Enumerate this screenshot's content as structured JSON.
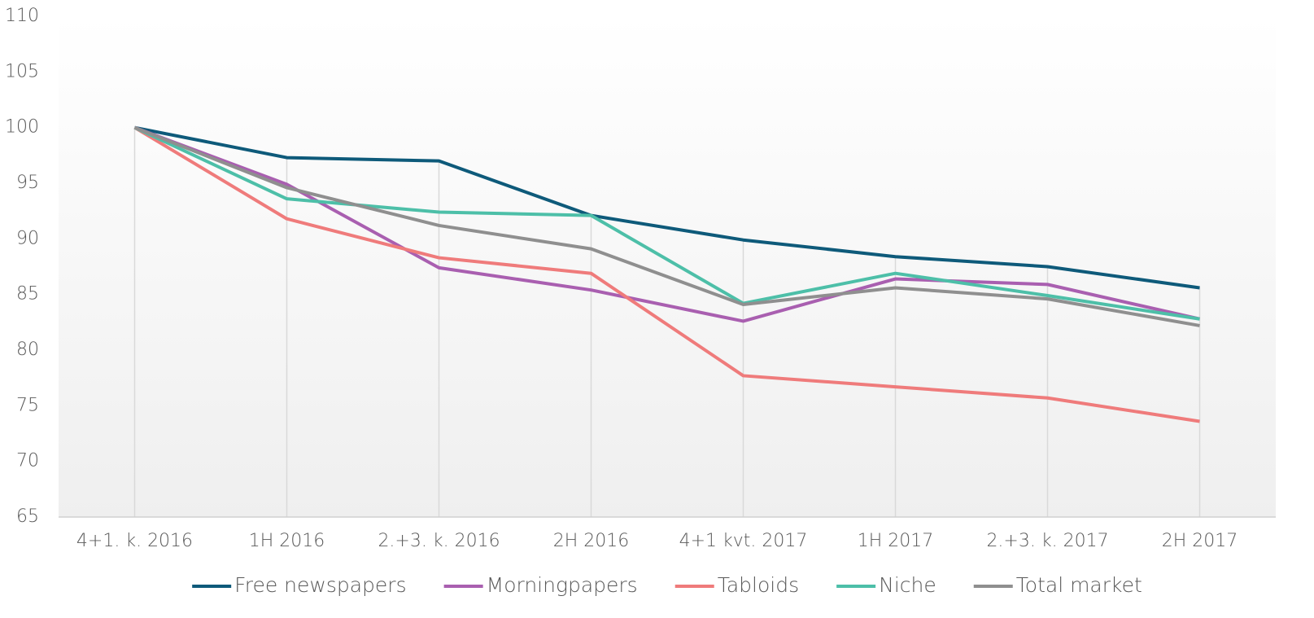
{
  "chart_data": {
    "type": "line",
    "categories": [
      "4+1. k. 2016",
      "1H 2016",
      "2.+3. k. 2016",
      "2H 2016",
      "4+1 kvt. 2017",
      "1H 2017",
      "2.+3. k. 2017",
      "2H 2017"
    ],
    "series": [
      {
        "name": "Free newspapers",
        "color": "#0e5a7a",
        "values": [
          100,
          97.3,
          97.0,
          92.1,
          89.9,
          88.4,
          87.5,
          85.6
        ]
      },
      {
        "name": "Morningpapers",
        "color": "#a95fb0",
        "values": [
          100,
          94.9,
          87.4,
          85.4,
          82.6,
          86.4,
          85.9,
          82.8
        ]
      },
      {
        "name": "Tabloids",
        "color": "#ef7b7b",
        "values": [
          100,
          91.8,
          88.3,
          86.9,
          77.7,
          76.7,
          75.7,
          73.6
        ]
      },
      {
        "name": "Niche",
        "color": "#4dbfa8",
        "values": [
          100,
          93.6,
          92.4,
          92.1,
          84.2,
          86.9,
          84.9,
          82.8
        ]
      },
      {
        "name": "Total market",
        "color": "#8f8f8f",
        "values": [
          100,
          94.6,
          91.2,
          89.1,
          84.1,
          85.6,
          84.6,
          82.2
        ]
      }
    ],
    "ylim": [
      65,
      110
    ],
    "yticks": [
      65,
      70,
      75,
      80,
      85,
      90,
      95,
      100,
      105,
      110
    ],
    "grid": true,
    "legend": "bottom"
  }
}
